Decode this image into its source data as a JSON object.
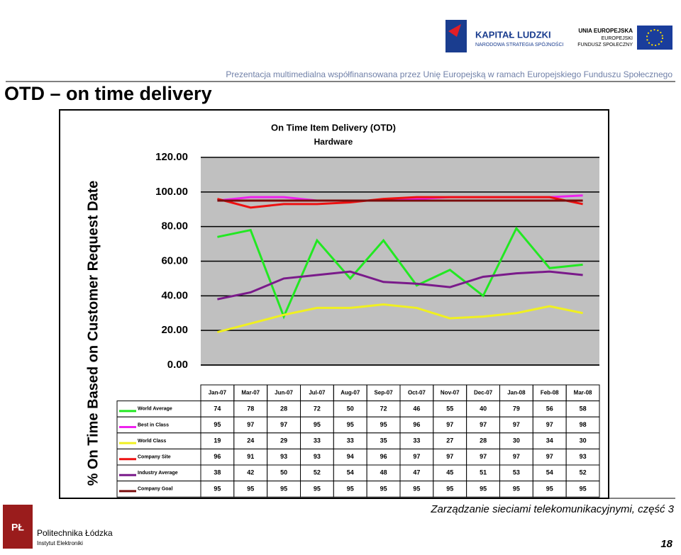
{
  "header": {
    "caption": "Prezentacja multimedialna współfinansowana przez Unię Europejską w ramach Europejskiego Funduszu Społecznego",
    "logo_left_title": "KAPITAŁ LUDZKI",
    "logo_left_sub": "NARODOWA STRATEGIA SPÓJNOŚCI",
    "logo_right_lines": [
      "UNIA EUROPEJSKA",
      "EUROPEJSKI",
      "FUNDUSZ SPOŁECZNY"
    ]
  },
  "slide_title": "OTD – on time delivery",
  "footer": {
    "course": "Zarządzanie sieciami telekomunikacyjnymi, część 3",
    "page": "18",
    "university": "Politechnika Łódzka",
    "institute": "Instytut Elektroniki"
  },
  "chart_data": {
    "type": "line",
    "title": "On Time Item Delivery (OTD)",
    "subtitle": "Hardware",
    "y_label": "% On Time Based on Customer Request Date",
    "categories": [
      "Jan-07",
      "Mar-07",
      "Jun-07",
      "Jul-07",
      "Aug-07",
      "Sep-07",
      "Oct-07",
      "Nov-07",
      "Dec-07",
      "Jan-08",
      "Feb-08",
      "Mar-08"
    ],
    "ylim": [
      0,
      120
    ],
    "yticks": [
      {
        "value": 0,
        "label": "0.00"
      },
      {
        "value": 20,
        "label": "20.00"
      },
      {
        "value": 40,
        "label": "40.00"
      },
      {
        "value": 60,
        "label": "60.00"
      },
      {
        "value": 80,
        "label": "80.00"
      },
      {
        "value": 100,
        "label": "100.00"
      },
      {
        "value": 120,
        "label": "120.00"
      }
    ],
    "grid": true,
    "series": [
      {
        "name": "World Average",
        "color": "#22e822",
        "values": [
          74,
          78,
          28,
          72,
          50,
          72,
          46,
          55,
          40,
          79,
          56,
          58
        ]
      },
      {
        "name": "Best in Class",
        "color": "#ee22ee",
        "values": [
          95,
          97,
          97,
          95,
          95,
          95,
          96,
          97,
          97,
          97,
          97,
          98
        ]
      },
      {
        "name": "World Class",
        "color": "#f0f020",
        "values": [
          19,
          24,
          29,
          33,
          33,
          35,
          33,
          27,
          28,
          30,
          34,
          30
        ]
      },
      {
        "name": "Company Site",
        "color": "#ee1111",
        "values": [
          96,
          91,
          93,
          93,
          94,
          96,
          97,
          97,
          97,
          97,
          97,
          93
        ]
      },
      {
        "name": "Industry Average",
        "color": "#7a1a8a",
        "values": [
          38,
          42,
          50,
          52,
          54,
          48,
          47,
          45,
          51,
          53,
          54,
          52
        ]
      },
      {
        "name": "Company Goal",
        "color": "#7a0d0d",
        "values": [
          95,
          95,
          95,
          95,
          95,
          95,
          95,
          95,
          95,
          95,
          95,
          95
        ]
      }
    ]
  }
}
